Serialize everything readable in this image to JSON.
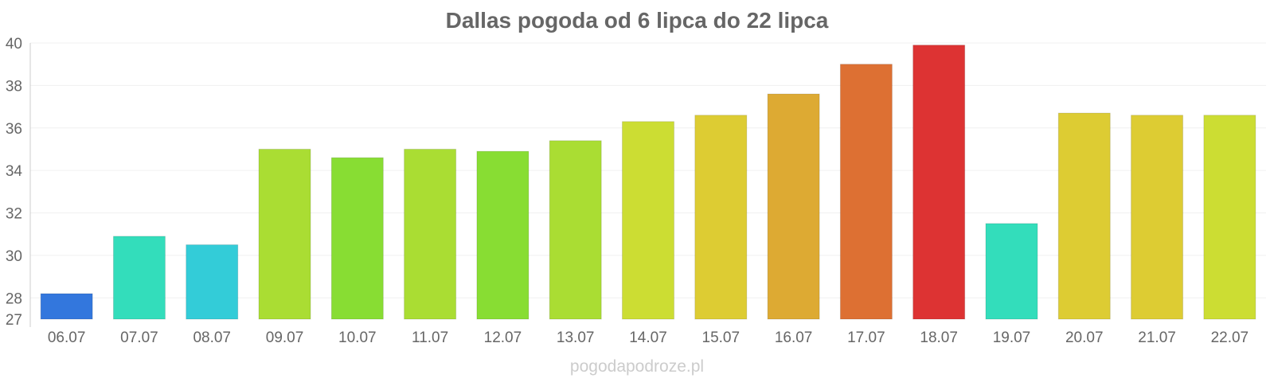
{
  "chart_data": {
    "type": "bar",
    "title": "Dallas pogoda od 6 lipca do 22 lipca",
    "xlabel": "",
    "ylabel": "",
    "ylim": [
      27,
      40
    ],
    "y_ticks": [
      27,
      28,
      30,
      32,
      34,
      36,
      38,
      40
    ],
    "grid": true,
    "legend": "none",
    "categories": [
      "06.07",
      "07.07",
      "08.07",
      "09.07",
      "10.07",
      "11.07",
      "12.07",
      "13.07",
      "14.07",
      "15.07",
      "16.07",
      "17.07",
      "18.07",
      "19.07",
      "20.07",
      "21.07",
      "22.07"
    ],
    "values": [
      28.2,
      30.9,
      30.5,
      35.0,
      34.6,
      35.0,
      34.9,
      35.4,
      36.3,
      36.6,
      37.6,
      39.0,
      39.9,
      31.5,
      36.7,
      36.6,
      36.6
    ],
    "bar_colors": [
      "#3377dd",
      "#33ddbb",
      "#33ccd8",
      "#aadd33",
      "#88dd33",
      "#aadd33",
      "#88dd33",
      "#aadd33",
      "#ccdd33",
      "#ddcc33",
      "#ddaa33",
      "#dd7033",
      "#dd3333",
      "#33ddbb",
      "#ddcc33",
      "#ddcc33",
      "#ccdd33"
    ]
  },
  "watermark": "pogodapodroze.pl"
}
